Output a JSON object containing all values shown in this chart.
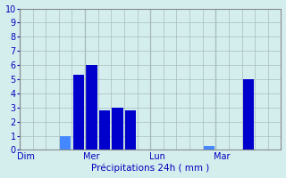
{
  "xlabel": "Précipitations 24h ( mm )",
  "ylim": [
    0,
    10
  ],
  "yticks": [
    0,
    1,
    2,
    3,
    4,
    5,
    6,
    7,
    8,
    9,
    10
  ],
  "background_color": "#d4eeee",
  "bar_color_dark": "#0000cc",
  "bar_color_light": "#4488ff",
  "grid_color": "#aabbbb",
  "axis_color": "#888888",
  "text_color": "#0000bb",
  "bar_positions": [
    3,
    4,
    5,
    6,
    7,
    8,
    14,
    17
  ],
  "bar_heights": [
    1,
    5.3,
    6.0,
    2.8,
    3.0,
    2.8,
    0.3,
    5.0
  ],
  "bar_colors": [
    "#4488ff",
    "#0000cc",
    "#0000cc",
    "#0000cc",
    "#0000cc",
    "#0000cc",
    "#4488ff",
    "#0000cc"
  ],
  "bar_width": 0.85,
  "xlim": [
    -0.5,
    19.5
  ],
  "xtick_positions": [
    0,
    5,
    10,
    15,
    20
  ],
  "xtick_labels": [
    "Dim",
    "Mer",
    "Lun",
    "Mar",
    ""
  ],
  "n_gridlines_x": 20
}
